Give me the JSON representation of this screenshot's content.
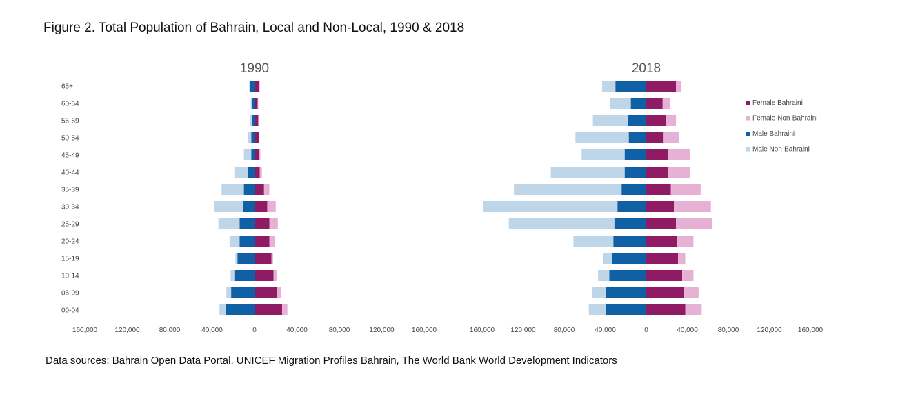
{
  "figure_title": "Figure 2. Total Population of Bahrain, Local and Non-Local, 1990 & 2018",
  "source_text": "Data sources: Bahrain Open Data Portal, UNICEF Migration Profiles Bahrain, The World Bank World Development Indicators",
  "chart_data": {
    "type": "bar",
    "orientation": "horizontal-population-pyramid",
    "age_groups": [
      "00-04",
      "05-09",
      "10-14",
      "15-19",
      "20-24",
      "25-29",
      "30-34",
      "35-39",
      "40-44",
      "45-49",
      "50-54",
      "55-59",
      "60-64",
      "65+"
    ],
    "x_ticks": [
      "160,000",
      "120,000",
      "80,000",
      "40,000",
      "0",
      "40,000",
      "80,000",
      "120,000",
      "160,000"
    ],
    "xlim": [
      -160000,
      160000
    ],
    "legend_position": "right",
    "colors": {
      "female_bahraini": "#8e1b63",
      "female_non_bahraini": "#e7b1d6",
      "male_bahraini": "#1060a5",
      "male_non_bahraini": "#bfd5e8"
    },
    "legend": [
      {
        "key": "female_bahraini",
        "label": "Female Bahraini"
      },
      {
        "key": "female_non_bahraini",
        "label": "Female Non-Bahraini"
      },
      {
        "key": "male_bahraini",
        "label": "Male Bahraini"
      },
      {
        "key": "male_non_bahraini",
        "label": "Male Non-Bahraini"
      }
    ],
    "panels": [
      {
        "title": "1990",
        "male_bahraini": [
          27000,
          22000,
          19000,
          16000,
          14000,
          14000,
          11000,
          10000,
          6000,
          3000,
          3000,
          2500,
          2500,
          4500
        ],
        "male_non_bahraini": [
          6000,
          4500,
          3500,
          2000,
          9500,
          20000,
          27000,
          21000,
          13000,
          7000,
          3000,
          1500,
          1000,
          500
        ],
        "female_bahraini": [
          26000,
          21000,
          18000,
          16000,
          14000,
          14000,
          12000,
          9000,
          5000,
          4000,
          4000,
          3500,
          3000,
          4500
        ],
        "female_non_bahraini": [
          5000,
          4000,
          3000,
          1500,
          5000,
          8000,
          8000,
          5000,
          2000,
          1500,
          500,
          500,
          500,
          500
        ]
      },
      {
        "title": "2018",
        "male_bahraini": [
          39000,
          39000,
          36000,
          33000,
          32000,
          31000,
          28000,
          24000,
          21000,
          21000,
          17000,
          18000,
          15000,
          30000
        ],
        "male_non_bahraini": [
          17000,
          14000,
          11000,
          9000,
          39000,
          103000,
          131000,
          105000,
          72000,
          42000,
          52000,
          34000,
          20000,
          13000
        ],
        "female_bahraini": [
          38000,
          37000,
          35000,
          31000,
          30000,
          29000,
          27000,
          24000,
          21000,
          21000,
          17000,
          19000,
          16000,
          29000
        ],
        "female_non_bahraini": [
          16000,
          14000,
          11000,
          7000,
          16000,
          35000,
          36000,
          29000,
          22000,
          22000,
          15000,
          10000,
          7000,
          5000
        ]
      }
    ]
  }
}
